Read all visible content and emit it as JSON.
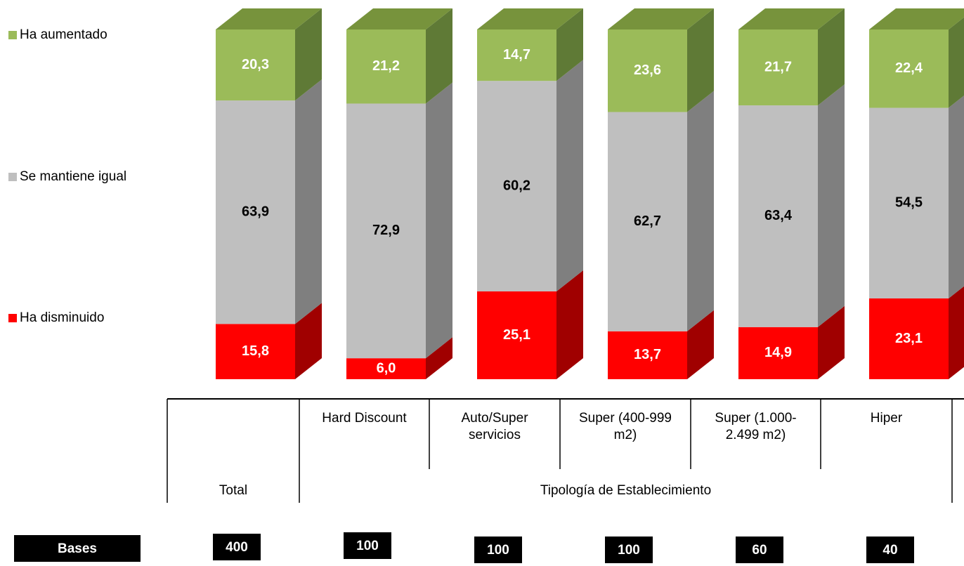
{
  "chart_data": {
    "type": "bar3d_stacked",
    "categories": [
      "Total",
      "Hard Discount",
      "Auto/Super servicios",
      "Super (400-999 m2)",
      "Super (1.000-2.499 m2)",
      "Hiper"
    ],
    "group_label": "Tipología de Establecimiento",
    "series": [
      {
        "name": "Ha aumentado",
        "color": "#9bbb59",
        "side_color": "#5f7a36",
        "values": [
          20.3,
          21.2,
          14.7,
          23.6,
          21.7,
          22.4
        ],
        "value_labels": [
          "20,3",
          "21,2",
          "14,7",
          "23,6",
          "21,7",
          "22,4"
        ]
      },
      {
        "name": "Se mantiene igual",
        "color": "#bfbfbf",
        "side_color": "#7f7f7f",
        "values": [
          63.9,
          72.9,
          60.2,
          62.7,
          63.4,
          54.5
        ],
        "value_labels": [
          "63,9",
          "72,9",
          "60,2",
          "62,7",
          "63,4",
          "54,5"
        ]
      },
      {
        "name": "Ha disminuido",
        "color": "#ff0000",
        "side_color": "#a00000",
        "values": [
          15.8,
          6.0,
          25.1,
          13.7,
          14.9,
          23.1
        ],
        "value_labels": [
          "15,8",
          "6,0",
          "25,1",
          "13,7",
          "14,9",
          "23,1"
        ]
      }
    ],
    "bases_label": "Bases",
    "bases": [
      400,
      100,
      100,
      100,
      60,
      40
    ]
  }
}
